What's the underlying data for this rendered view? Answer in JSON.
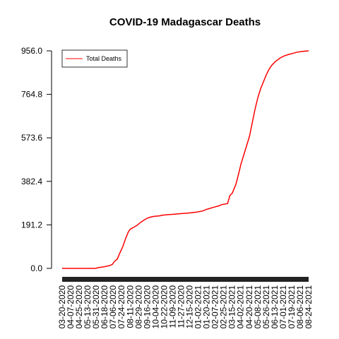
{
  "chart_data": {
    "type": "line",
    "title": "COVID-19 Madagascar Deaths",
    "xlabel": "",
    "ylabel": "",
    "ylim": [
      0,
      956
    ],
    "yticks": [
      "0.0",
      "191.2",
      "382.4",
      "573.6",
      "764.8",
      "956.0"
    ],
    "ytick_values": [
      0,
      191.2,
      382.4,
      573.6,
      764.8,
      956.0
    ],
    "xlim": [
      "2020-03-20",
      "2021-08-31"
    ],
    "x_tick_labels": [
      "03-20-2020",
      "04-07-2020",
      "04-25-2020",
      "05-13-2020",
      "05-31-2020",
      "06-18-2020",
      "07-06-2020",
      "07-24-2020",
      "08-11-2020",
      "08-29-2020",
      "09-16-2020",
      "10-04-2020",
      "10-22-2020",
      "11-09-2020",
      "11-27-2020",
      "12-15-2020",
      "01-02-2021",
      "01-20-2021",
      "02-07-2021",
      "02-25-2021",
      "03-15-2021",
      "04-02-2021",
      "04-20-2021",
      "05-08-2021",
      "05-26-2021",
      "06-13-2021",
      "07-01-2021",
      "07-19-2021",
      "08-06-2021",
      "08-24-2021"
    ],
    "legend": {
      "position": "top-left",
      "entries": [
        {
          "label": "Total Deaths",
          "color": "#ff0000"
        }
      ]
    },
    "grid": false,
    "series": [
      {
        "name": "Total Deaths",
        "color": "#ff0000",
        "points": [
          [
            "2020-03-20",
            0
          ],
          [
            "2020-05-01",
            0
          ],
          [
            "2020-05-31",
            0
          ],
          [
            "2020-06-05",
            3
          ],
          [
            "2020-06-18",
            7
          ],
          [
            "2020-06-25",
            10
          ],
          [
            "2020-07-01",
            13
          ],
          [
            "2020-07-06",
            18
          ],
          [
            "2020-07-10",
            30
          ],
          [
            "2020-07-16",
            40
          ],
          [
            "2020-07-22",
            68
          ],
          [
            "2020-07-28",
            95
          ],
          [
            "2020-08-03",
            130
          ],
          [
            "2020-08-09",
            160
          ],
          [
            "2020-08-13",
            172
          ],
          [
            "2020-08-20",
            180
          ],
          [
            "2020-08-27",
            188
          ],
          [
            "2020-09-03",
            200
          ],
          [
            "2020-09-10",
            210
          ],
          [
            "2020-09-18",
            220
          ],
          [
            "2020-09-25",
            225
          ],
          [
            "2020-10-04",
            229
          ],
          [
            "2020-10-15",
            231
          ],
          [
            "2020-10-22",
            234
          ],
          [
            "2020-11-01",
            236
          ],
          [
            "2020-11-15",
            238
          ],
          [
            "2020-11-27",
            240
          ],
          [
            "2020-12-15",
            243
          ],
          [
            "2021-01-02",
            247
          ],
          [
            "2021-01-15",
            252
          ],
          [
            "2021-01-25",
            260
          ],
          [
            "2021-02-07",
            268
          ],
          [
            "2021-02-20",
            275
          ],
          [
            "2021-02-25",
            280
          ],
          [
            "2021-03-10",
            285
          ],
          [
            "2021-03-15",
            320
          ],
          [
            "2021-03-20",
            330
          ],
          [
            "2021-03-28",
            370
          ],
          [
            "2021-04-02",
            410
          ],
          [
            "2021-04-08",
            460
          ],
          [
            "2021-04-14",
            500
          ],
          [
            "2021-04-20",
            540
          ],
          [
            "2021-04-26",
            580
          ],
          [
            "2021-05-02",
            640
          ],
          [
            "2021-05-08",
            700
          ],
          [
            "2021-05-14",
            750
          ],
          [
            "2021-05-20",
            790
          ],
          [
            "2021-05-26",
            820
          ],
          [
            "2021-06-01",
            850
          ],
          [
            "2021-06-07",
            875
          ],
          [
            "2021-06-13",
            893
          ],
          [
            "2021-06-20",
            908
          ],
          [
            "2021-07-01",
            925
          ],
          [
            "2021-07-10",
            934
          ],
          [
            "2021-07-19",
            940
          ],
          [
            "2021-07-28",
            945
          ],
          [
            "2021-08-06",
            950
          ],
          [
            "2021-08-15",
            953
          ],
          [
            "2021-08-24",
            955
          ],
          [
            "2021-08-31",
            956
          ]
        ]
      }
    ]
  }
}
